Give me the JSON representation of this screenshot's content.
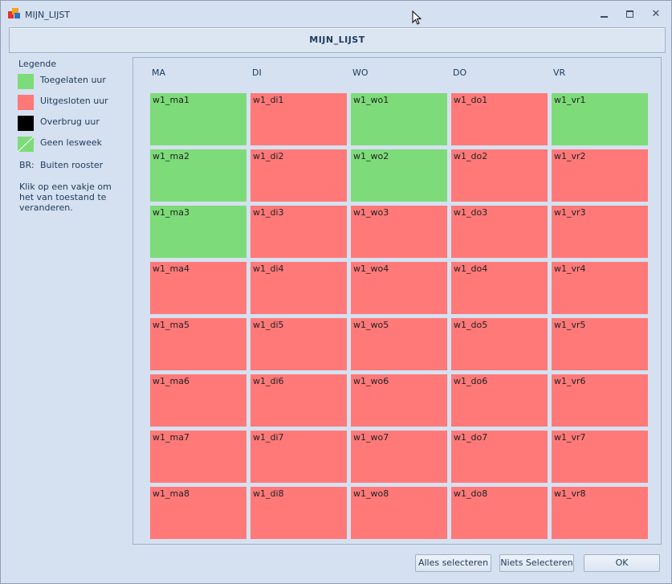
{
  "window": {
    "title": "MIJN_LIJST",
    "controls": {
      "minimize": "minimize-icon",
      "maximize": "maximize-icon",
      "close": "close-icon"
    }
  },
  "header": {
    "title": "MIJN_LIJST"
  },
  "legend": {
    "title": "Legende",
    "items": [
      {
        "label": "Toegelaten uur",
        "color": "#7ddc79"
      },
      {
        "label": "Uitgesloten uur",
        "color": "#ff7979"
      },
      {
        "label": "Overbrug uur",
        "color": "#000000"
      },
      {
        "label": "Geen lesweek",
        "color": "#7ddc79"
      }
    ],
    "br_code": "BR:",
    "br_label": "Buiten rooster",
    "note": "Klik op een vakje om het van toestand te veranderen."
  },
  "colors": {
    "allowed": "#7ddc79",
    "excluded": "#ff7979"
  },
  "grid": {
    "days": [
      "MA",
      "DI",
      "WO",
      "DO",
      "VR"
    ],
    "rows": [
      [
        {
          "label": "w1_ma1",
          "state": "allowed"
        },
        {
          "label": "w1_di1",
          "state": "excluded"
        },
        {
          "label": "w1_wo1",
          "state": "allowed"
        },
        {
          "label": "w1_do1",
          "state": "excluded"
        },
        {
          "label": "w1_vr1",
          "state": "allowed"
        }
      ],
      [
        {
          "label": "w1_ma2",
          "state": "allowed"
        },
        {
          "label": "w1_di2",
          "state": "excluded"
        },
        {
          "label": "w1_wo2",
          "state": "allowed"
        },
        {
          "label": "w1_do2",
          "state": "excluded"
        },
        {
          "label": "w1_vr2",
          "state": "excluded"
        }
      ],
      [
        {
          "label": "w1_ma3",
          "state": "allowed"
        },
        {
          "label": "w1_di3",
          "state": "excluded"
        },
        {
          "label": "w1_wo3",
          "state": "excluded"
        },
        {
          "label": "w1_do3",
          "state": "excluded"
        },
        {
          "label": "w1_vr3",
          "state": "excluded"
        }
      ],
      [
        {
          "label": "w1_ma4",
          "state": "excluded"
        },
        {
          "label": "w1_di4",
          "state": "excluded"
        },
        {
          "label": "w1_wo4",
          "state": "excluded"
        },
        {
          "label": "w1_do4",
          "state": "excluded"
        },
        {
          "label": "w1_vr4",
          "state": "excluded"
        }
      ],
      [
        {
          "label": "w1_ma5",
          "state": "excluded"
        },
        {
          "label": "w1_di5",
          "state": "excluded"
        },
        {
          "label": "w1_wo5",
          "state": "excluded"
        },
        {
          "label": "w1_do5",
          "state": "excluded"
        },
        {
          "label": "w1_vr5",
          "state": "excluded"
        }
      ],
      [
        {
          "label": "w1_ma6",
          "state": "excluded"
        },
        {
          "label": "w1_di6",
          "state": "excluded"
        },
        {
          "label": "w1_wo6",
          "state": "excluded"
        },
        {
          "label": "w1_do6",
          "state": "excluded"
        },
        {
          "label": "w1_vr6",
          "state": "excluded"
        }
      ],
      [
        {
          "label": "w1_ma7",
          "state": "excluded"
        },
        {
          "label": "w1_di7",
          "state": "excluded"
        },
        {
          "label": "w1_wo7",
          "state": "excluded"
        },
        {
          "label": "w1_do7",
          "state": "excluded"
        },
        {
          "label": "w1_vr7",
          "state": "excluded"
        }
      ],
      [
        {
          "label": "w1_ma8",
          "state": "excluded"
        },
        {
          "label": "w1_di8",
          "state": "excluded"
        },
        {
          "label": "w1_wo8",
          "state": "excluded"
        },
        {
          "label": "w1_do8",
          "state": "excluded"
        },
        {
          "label": "w1_vr8",
          "state": "excluded"
        }
      ]
    ]
  },
  "footer": {
    "select_all": "Alles selecteren",
    "select_none": "Niets Selecteren",
    "ok": "OK"
  }
}
